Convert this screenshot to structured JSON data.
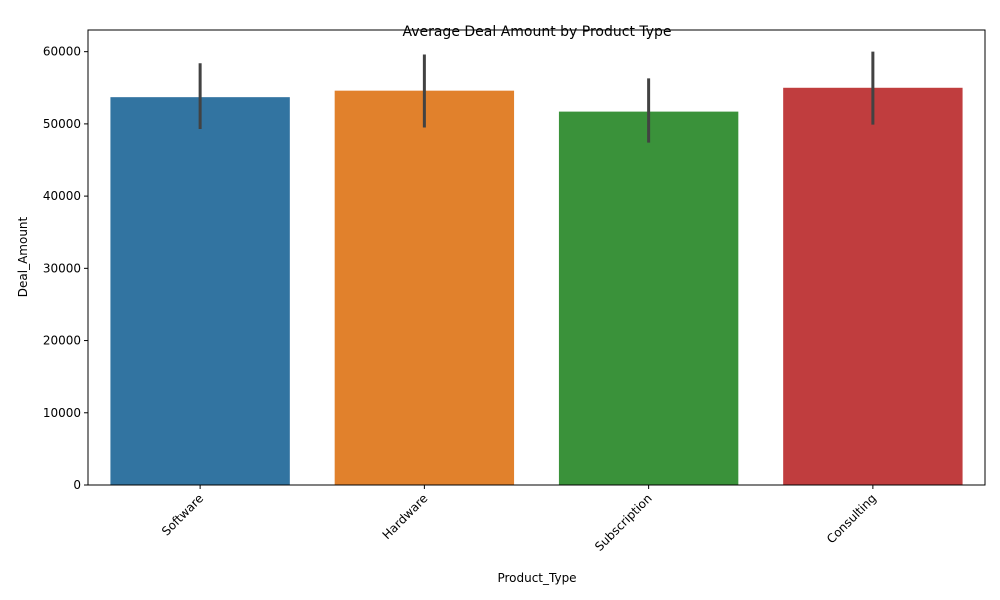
{
  "chart_data": {
    "type": "bar",
    "title": "Average Deal Amount by Product Type",
    "xlabel": "Product_Type",
    "ylabel": "Deal_Amount",
    "categories": [
      "Software",
      "Hardware",
      "Subscription",
      "Consulting"
    ],
    "values": [
      53700,
      54600,
      51700,
      55000
    ],
    "error_low": [
      49300,
      49500,
      47400,
      49900
    ],
    "error_high": [
      58400,
      59600,
      56300,
      60000
    ],
    "colors": [
      "#3274a1",
      "#e1812c",
      "#3a923a",
      "#c03d3e"
    ],
    "error_color": "#424242",
    "ylim": [
      0,
      63000
    ],
    "yticks": [
      0,
      10000,
      20000,
      30000,
      40000,
      50000,
      60000
    ],
    "grid": false,
    "legend": "none"
  }
}
